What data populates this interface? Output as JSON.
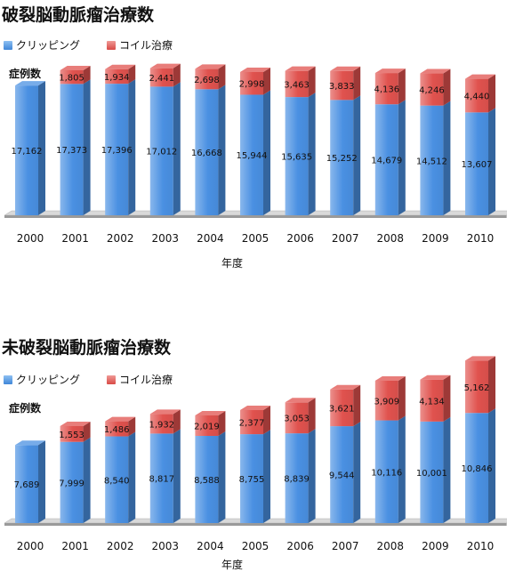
{
  "chart_data": [
    {
      "type": "bar",
      "stacked": true,
      "title": "破裂脳動脈瘤治療数",
      "ylabel": "症例数",
      "xlabel": "年度",
      "categories": [
        "2000",
        "2001",
        "2002",
        "2003",
        "2004",
        "2005",
        "2006",
        "2007",
        "2008",
        "2009",
        "2010"
      ],
      "series": [
        {
          "name": "クリッピング",
          "color": "#4a90e2",
          "values": [
            17162,
            17373,
            17396,
            17012,
            16668,
            15944,
            15635,
            15252,
            14679,
            14512,
            13607
          ]
        },
        {
          "name": "コイル治療",
          "color": "#e0524e",
          "values": [
            null,
            1805,
            1934,
            2441,
            2698,
            2998,
            3463,
            3833,
            4136,
            4246,
            4440
          ]
        }
      ],
      "value_labels": {
        "クリッピング": [
          "17,162",
          "17,373",
          "17,396",
          "17,012",
          "16,668",
          "15,944",
          "15,635",
          "15,252",
          "14,679",
          "14,512",
          "13,607"
        ],
        "コイル治療": [
          "",
          "1,805",
          "1,934",
          "2,441",
          "2,698",
          "2,998",
          "3,463",
          "3,833",
          "4,136",
          "4,246",
          "4,440"
        ]
      },
      "ylim": [
        0,
        20000
      ],
      "grid": false,
      "legend": "top-left"
    },
    {
      "type": "bar",
      "stacked": true,
      "title": "未破裂脳動脈瘤治療数",
      "ylabel": "症例数",
      "xlabel": "年度",
      "categories": [
        "2000",
        "2001",
        "2002",
        "2003",
        "2004",
        "2005",
        "2006",
        "2007",
        "2008",
        "2009",
        "2010"
      ],
      "series": [
        {
          "name": "クリッピング",
          "color": "#4a90e2",
          "values": [
            7689,
            7999,
            8540,
            8817,
            8588,
            8755,
            8839,
            9544,
            10116,
            10001,
            10846
          ]
        },
        {
          "name": "コイル治療",
          "color": "#e0524e",
          "values": [
            null,
            1553,
            1486,
            1932,
            2019,
            2377,
            3053,
            3621,
            3909,
            4134,
            5162
          ]
        }
      ],
      "value_labels": {
        "クリッピング": [
          "7,689",
          "7,999",
          "8,540",
          "8,817",
          "8,588",
          "8,755",
          "8,839",
          "9,544",
          "10,116",
          "10,001",
          "10,846"
        ],
        "コイル治療": [
          "",
          "1,553",
          "1,486",
          "1,932",
          "2,019",
          "2,377",
          "3,053",
          "3,621",
          "3,909",
          "4,134",
          "5,162"
        ]
      },
      "ylim": [
        0,
        17000
      ],
      "grid": false,
      "legend": "top-left"
    }
  ]
}
